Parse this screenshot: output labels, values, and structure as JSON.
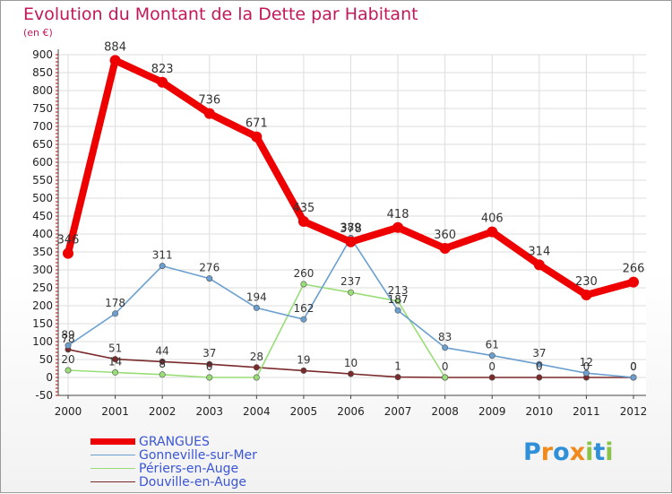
{
  "title": "Evolution du Montant de la Dette par Habitant",
  "subtitle": "(en €)",
  "logo": {
    "text": "Proxiti",
    "letters": [
      "P",
      "r",
      "o",
      "x",
      "i",
      "t",
      "i"
    ],
    "letter_colors": [
      "#2f8fd8",
      "#f08a1c",
      "#2f8fd8",
      "#f08a1c",
      "#8bc34a",
      "#2f8fd8",
      "#8bc34a"
    ]
  },
  "colors": {
    "title": "#c2185b",
    "grid": "#dddddd",
    "axis_ticks": "#cc0000",
    "legend_text": "#3a55d6"
  },
  "chart_data": {
    "type": "line",
    "title": "Evolution du Montant de la Dette par Habitant",
    "ylabel": "(en €)",
    "x": [
      "2000",
      "2001",
      "2002",
      "2003",
      "2004",
      "2005",
      "2006",
      "2007",
      "2008",
      "2009",
      "2010",
      "2011",
      "2012"
    ],
    "ylim": [
      -50,
      900
    ],
    "yticks": [
      -50,
      0,
      50,
      100,
      150,
      200,
      250,
      300,
      350,
      400,
      450,
      500,
      550,
      600,
      650,
      700,
      750,
      800,
      850,
      900
    ],
    "grid": true,
    "legend_position": "bottom-left",
    "series": [
      {
        "name": "GRANGUES",
        "color": "#ee0000",
        "values": [
          346,
          884,
          823,
          736,
          671,
          435,
          378,
          418,
          360,
          406,
          314,
          230,
          266
        ],
        "labels": [
          "346",
          "884",
          "823",
          "736",
          "671",
          "435",
          "378",
          "418",
          "360",
          "406",
          "314",
          "230",
          "266"
        ]
      },
      {
        "name": "Gonneville-sur-Mer",
        "color": "#6a9fd0",
        "values": [
          89,
          178,
          311,
          276,
          194,
          162,
          389,
          187,
          83,
          61,
          37,
          12,
          0
        ],
        "labels": [
          "89",
          "178",
          "311",
          "276",
          "194",
          "162",
          "389",
          "187",
          "83",
          "61",
          "37",
          "12",
          "0"
        ]
      },
      {
        "name": "Périers-en-Auge",
        "color": "#99dd77",
        "values": [
          20,
          14,
          8,
          0,
          0,
          260,
          237,
          213,
          0,
          null,
          null,
          null,
          null
        ],
        "labels": [
          "20",
          "14",
          "8",
          "0",
          "",
          "260",
          "237",
          "213",
          "",
          "",
          "",
          "",
          ""
        ]
      },
      {
        "name": "Douville-en-Auge",
        "color": "#7a2a2a",
        "values": [
          78,
          51,
          44,
          37,
          28,
          19,
          10,
          1,
          0,
          0,
          0,
          0,
          0
        ],
        "labels": [
          "78",
          "51",
          "44",
          "37",
          "28",
          "19",
          "10",
          "1",
          "0",
          "0",
          "0",
          "0",
          "0"
        ]
      }
    ]
  }
}
